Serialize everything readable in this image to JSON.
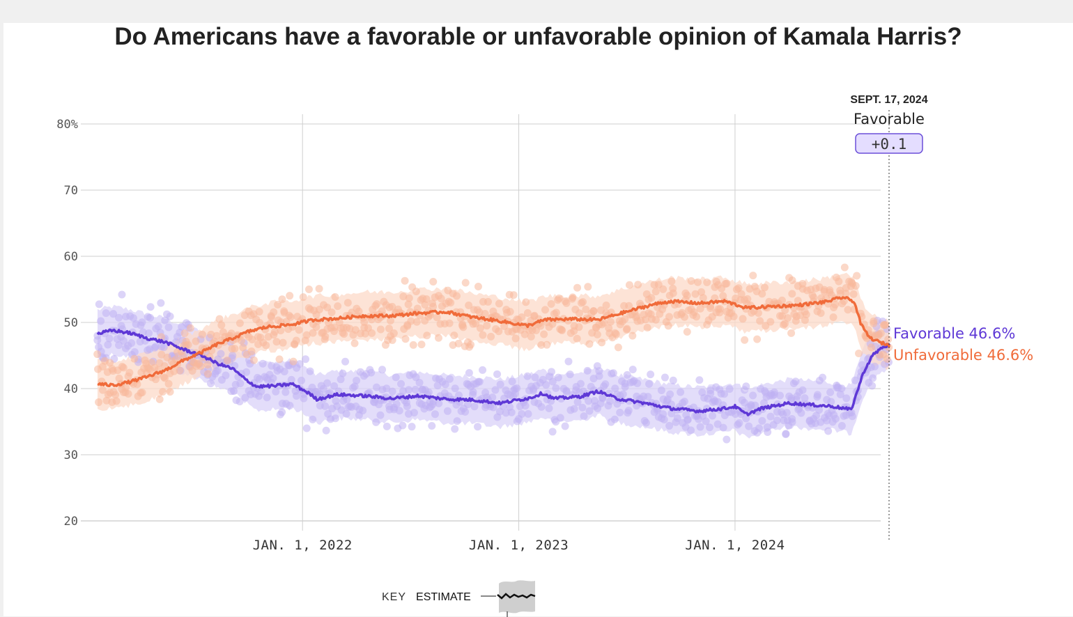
{
  "chart_data": {
    "type": "line",
    "title": "Do Americans have a favorable or unfavorable opinion of Kamala Harris?",
    "x_ticks": [
      "JAN. 1, 2022",
      "JAN. 1, 2023",
      "JAN. 1, 2024"
    ],
    "y_ticks": [
      "80%",
      "70",
      "60",
      "50",
      "40",
      "30",
      "20"
    ],
    "ylim": [
      20,
      80
    ],
    "xlim": [
      "2021-01-20",
      "2024-09-17"
    ],
    "grid": true,
    "annotation": {
      "date": "SEPT. 17, 2024",
      "series": "Favorable",
      "diff": "+0.1"
    },
    "series": [
      {
        "name": "Favorable",
        "end_label": "Favorable 46.6%",
        "color": "#5e38d6",
        "band_color": "#d9d2f8",
        "dot_color": "#bfb0f2",
        "points": [
          [
            "2021-01-20",
            48.3
          ],
          [
            "2021-02-15",
            48.8
          ],
          [
            "2021-03-15",
            48.4
          ],
          [
            "2021-04-15",
            47.6
          ],
          [
            "2021-05-15",
            47.0
          ],
          [
            "2021-06-15",
            45.9
          ],
          [
            "2021-07-15",
            45.0
          ],
          [
            "2021-08-10",
            43.8
          ],
          [
            "2021-09-05",
            43.0
          ],
          [
            "2021-09-25",
            41.5
          ],
          [
            "2021-10-15",
            40.3
          ],
          [
            "2021-11-15",
            40.4
          ],
          [
            "2021-12-15",
            40.7
          ],
          [
            "2022-01-10",
            39.4
          ],
          [
            "2022-01-25",
            38.4
          ],
          [
            "2022-03-01",
            39.1
          ],
          [
            "2022-04-15",
            38.9
          ],
          [
            "2022-06-01",
            38.5
          ],
          [
            "2022-07-15",
            38.9
          ],
          [
            "2022-09-01",
            38.4
          ],
          [
            "2022-10-15",
            38.3
          ],
          [
            "2022-12-01",
            37.8
          ],
          [
            "2023-01-20",
            38.6
          ],
          [
            "2023-02-10",
            39.3
          ],
          [
            "2023-03-01",
            38.5
          ],
          [
            "2023-04-15",
            38.8
          ],
          [
            "2023-05-15",
            39.6
          ],
          [
            "2023-06-15",
            38.5
          ],
          [
            "2023-08-01",
            37.8
          ],
          [
            "2023-09-15",
            37.0
          ],
          [
            "2023-11-01",
            36.6
          ],
          [
            "2023-12-15",
            37.0
          ],
          [
            "2024-01-01",
            37.3
          ],
          [
            "2024-01-20",
            36.1
          ],
          [
            "2024-02-15",
            37.0
          ],
          [
            "2024-04-01",
            37.8
          ],
          [
            "2024-05-15",
            37.5
          ],
          [
            "2024-06-15",
            37.3
          ],
          [
            "2024-07-15",
            36.8
          ],
          [
            "2024-07-25",
            39.5
          ],
          [
            "2024-08-05",
            42.5
          ],
          [
            "2024-08-20",
            45.0
          ],
          [
            "2024-09-05",
            46.2
          ],
          [
            "2024-09-17",
            46.6
          ]
        ]
      },
      {
        "name": "Unfavorable",
        "end_label": "Unfavorable 46.6%",
        "color": "#f06b3a",
        "band_color": "#fcd9c8",
        "dot_color": "#f7b89b",
        "points": [
          [
            "2021-01-20",
            40.7
          ],
          [
            "2021-02-15",
            40.5
          ],
          [
            "2021-03-15",
            41.0
          ],
          [
            "2021-04-15",
            41.8
          ],
          [
            "2021-05-15",
            42.8
          ],
          [
            "2021-06-15",
            44.3
          ],
          [
            "2021-07-15",
            45.5
          ],
          [
            "2021-08-10",
            46.7
          ],
          [
            "2021-09-05",
            47.6
          ],
          [
            "2021-10-01",
            48.6
          ],
          [
            "2021-11-01",
            49.3
          ],
          [
            "2021-12-15",
            49.7
          ],
          [
            "2022-01-20",
            50.4
          ],
          [
            "2022-03-01",
            50.6
          ],
          [
            "2022-04-15",
            51.0
          ],
          [
            "2022-06-01",
            51.0
          ],
          [
            "2022-07-15",
            51.4
          ],
          [
            "2022-09-01",
            51.6
          ],
          [
            "2022-10-15",
            50.8
          ],
          [
            "2022-12-01",
            50.2
          ],
          [
            "2023-01-15",
            49.5
          ],
          [
            "2023-02-15",
            50.4
          ],
          [
            "2023-04-01",
            50.5
          ],
          [
            "2023-05-15",
            50.4
          ],
          [
            "2023-07-01",
            51.6
          ],
          [
            "2023-08-15",
            52.7
          ],
          [
            "2023-09-15",
            53.2
          ],
          [
            "2023-11-01",
            52.9
          ],
          [
            "2023-12-15",
            53.2
          ],
          [
            "2024-01-20",
            52.2
          ],
          [
            "2024-03-01",
            52.4
          ],
          [
            "2024-04-15",
            52.6
          ],
          [
            "2024-06-01",
            53.1
          ],
          [
            "2024-07-01",
            53.8
          ],
          [
            "2024-07-20",
            53.2
          ],
          [
            "2024-08-01",
            49.6
          ],
          [
            "2024-08-15",
            47.7
          ],
          [
            "2024-09-01",
            47.0
          ],
          [
            "2024-09-17",
            46.6
          ]
        ]
      }
    ]
  },
  "key": {
    "label": "KEY",
    "estimate": "ESTIMATE"
  }
}
